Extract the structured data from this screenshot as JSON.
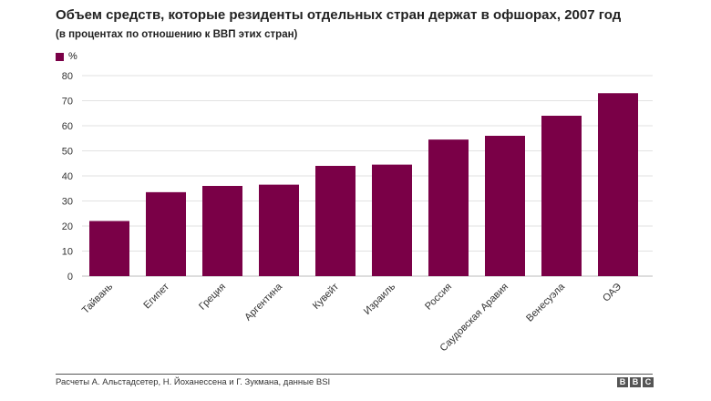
{
  "chart_data": {
    "type": "bar",
    "title": "Объем средств, которые резиденты отдельных стран держат в офшорах, 2007 год",
    "subtitle": "(в процентах по отношению к ВВП этих стран)",
    "categories": [
      "Тайвань",
      "Египет",
      "Греция",
      "Аргентина",
      "Кувейт",
      "Израиль",
      "Россия",
      "Саудовская Аравия",
      "Венесуэла",
      "ОАЭ"
    ],
    "series": [
      {
        "name": "%",
        "values": [
          22,
          33.5,
          36,
          36.5,
          44,
          44.5,
          54.5,
          56,
          64,
          73
        ]
      }
    ],
    "y_ticks": [
      "0",
      "10",
      "20",
      "30",
      "40",
      "50",
      "60",
      "70",
      "80"
    ],
    "ylim": [
      0,
      80
    ],
    "grid": true,
    "legend_position": "top-left",
    "bar_color": "#7a0047"
  },
  "legend": {
    "label": "%",
    "color": "#7a0047"
  },
  "source": "Расчеты А. Альстадсетер, Н. Йоханессена и Г. Зукмана, данные BSI",
  "logo": {
    "letters": [
      "B",
      "B",
      "C"
    ]
  }
}
